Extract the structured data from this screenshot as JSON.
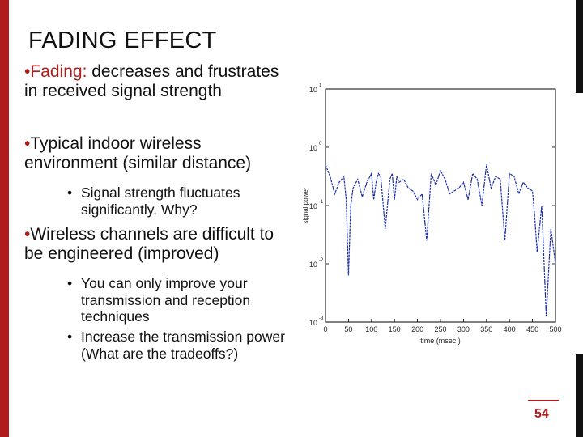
{
  "slide": {
    "title": "FADING EFFECT",
    "page_number": "54",
    "bullets": {
      "b1_term": "Fading:",
      "b1_rest": " decreases and frustrates in received signal strength",
      "b2": "Typical indoor wireless environment (similar distance)",
      "s1": "Signal strength fluctuates significantly. Why?",
      "b3": "Wireless channels are difficult to be engineered (improved)",
      "s2": "You can only improve your transmission and reception techniques",
      "s3": "Increase the transmission power (What are the tradeoffs?)"
    },
    "accent_color": "#b01c1c"
  },
  "chart_data": {
    "type": "line",
    "xlabel": "time (msec.)",
    "ylabel": "signal power",
    "x_ticks": [
      "0",
      "50",
      "100",
      "150",
      "200",
      "250",
      "300",
      "350",
      "400",
      "450",
      "500"
    ],
    "y_tick_labels": [
      "10",
      "10",
      "10",
      "10",
      "10"
    ],
    "y_tick_exponents": [
      "1",
      "0",
      "-1",
      "-2",
      "-3"
    ],
    "xlim": [
      0,
      500
    ],
    "ylim_log10": [
      -3,
      1
    ],
    "scale": "log",
    "series": [
      {
        "x": [
          0,
          10,
          20,
          30,
          40,
          45,
          50,
          55,
          60,
          70,
          80,
          90,
          100,
          105,
          110,
          115,
          120,
          130,
          140,
          145,
          150,
          155,
          160,
          170,
          180,
          190,
          200,
          210,
          220,
          230,
          240,
          250,
          260,
          270,
          280,
          290,
          300,
          310,
          320,
          330,
          340,
          350,
          360,
          370,
          380,
          390,
          400,
          410,
          420,
          430,
          440,
          450,
          455,
          460,
          470,
          480,
          490,
          500
        ],
        "y": [
          -0.3,
          -0.5,
          -0.8,
          -0.6,
          -0.5,
          -0.9,
          -2.2,
          -1.0,
          -0.7,
          -0.55,
          -0.85,
          -0.6,
          -0.45,
          -0.9,
          -0.6,
          -0.45,
          -0.5,
          -1.4,
          -0.55,
          -0.45,
          -0.9,
          -0.5,
          -0.6,
          -0.55,
          -0.7,
          -0.75,
          -0.9,
          -0.8,
          -1.6,
          -0.45,
          -0.65,
          -0.4,
          -0.55,
          -0.8,
          -0.75,
          -0.7,
          -0.6,
          -0.9,
          -0.45,
          -0.55,
          -1.0,
          -0.3,
          -0.7,
          -0.5,
          -0.55,
          -1.6,
          -0.45,
          -0.5,
          -0.8,
          -0.6,
          -0.7,
          -0.75,
          -1.2,
          -1.8,
          -1.0,
          -2.9,
          -1.4,
          -2.0
        ]
      }
    ]
  }
}
